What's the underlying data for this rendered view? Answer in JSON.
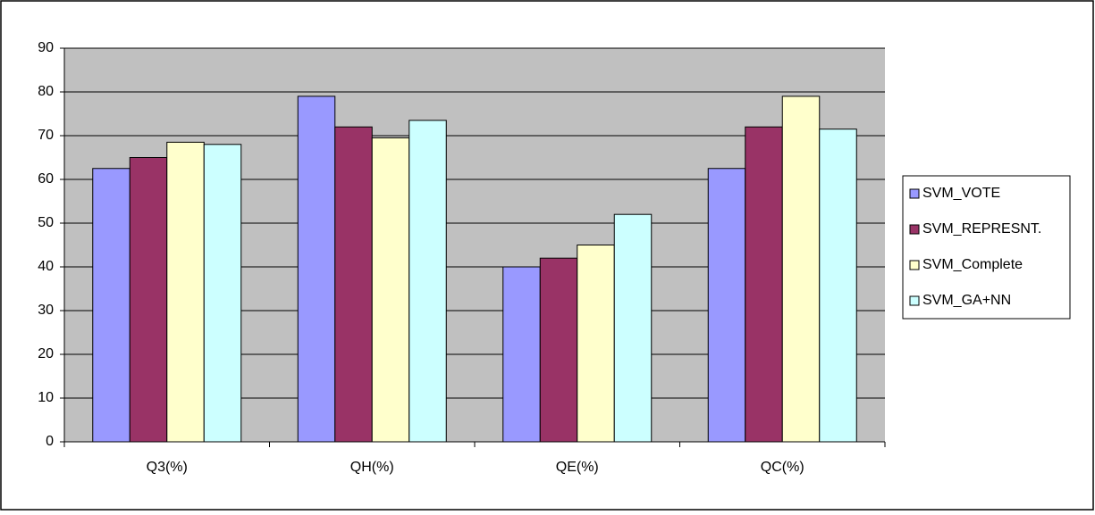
{
  "chart_data": {
    "type": "bar",
    "categories": [
      "Q3(%)",
      "QH(%)",
      "QE(%)",
      "QC(%)"
    ],
    "series": [
      {
        "name": "SVM_VOTE",
        "color": "#9999ff",
        "values": [
          62.5,
          79,
          40,
          62.5
        ]
      },
      {
        "name": "SVM_REPRESNT.",
        "color": "#993366",
        "values": [
          65,
          72,
          42,
          72
        ]
      },
      {
        "name": "SVM_Complete",
        "color": "#ffffcc",
        "values": [
          68.5,
          69.5,
          45,
          79
        ]
      },
      {
        "name": "SVM_GA+NN",
        "color": "#ccffff",
        "values": [
          68,
          73.5,
          52,
          71.5
        ]
      }
    ],
    "ylim": [
      0,
      90
    ],
    "yticks": [
      0,
      10,
      20,
      30,
      40,
      50,
      60,
      70,
      80,
      90
    ],
    "grid": true,
    "legend": "right"
  }
}
